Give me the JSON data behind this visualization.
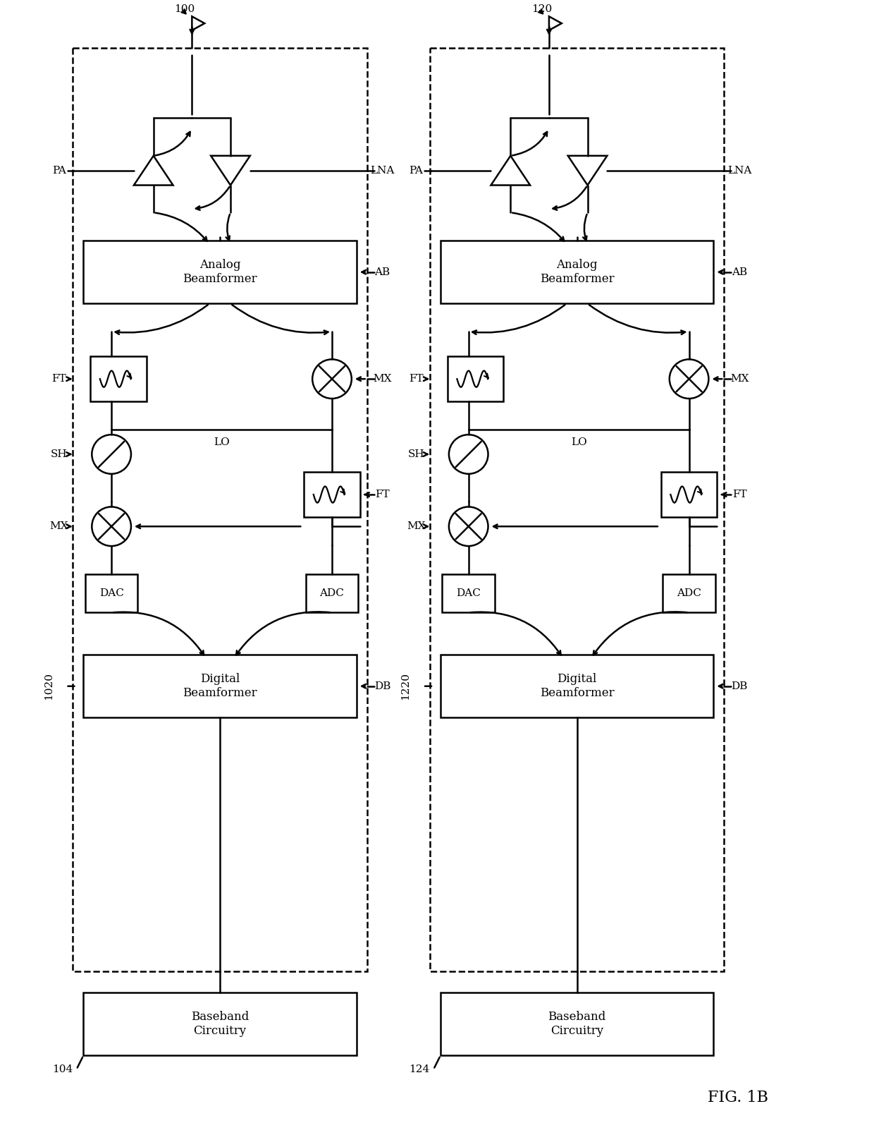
{
  "fig_width": 12.4,
  "fig_height": 16.26,
  "bg_color": "#ffffff",
  "line_color": "#000000",
  "fig_label": "FIG. 1B",
  "left": {
    "id": "100",
    "sub_id": "1020",
    "bb_id": "104",
    "pa": "PA",
    "lna": "LNA",
    "ab": "AB",
    "db": "DB",
    "ft": "FT",
    "sh": "SH",
    "mx": "MX",
    "lo": "LO",
    "dac": "DAC",
    "adc": "ADC",
    "analog_bf": "Analog\nBeamformer",
    "digital_bf": "Digital\nBeamformer",
    "baseband": "Baseband\nCircuitry"
  },
  "right": {
    "id": "120",
    "sub_id": "1220",
    "bb_id": "124",
    "pa": "PA",
    "lna": "LNA",
    "ab": "AB",
    "db": "DB",
    "ft": "FT",
    "sh": "SH",
    "mx": "MX",
    "lo": "LO",
    "dac": "DAC",
    "adc": "ADC",
    "analog_bf": "Analog\nBeamformer",
    "digital_bf": "Digital\nBeamformer",
    "baseband": "Baseband\nCircuitry"
  }
}
